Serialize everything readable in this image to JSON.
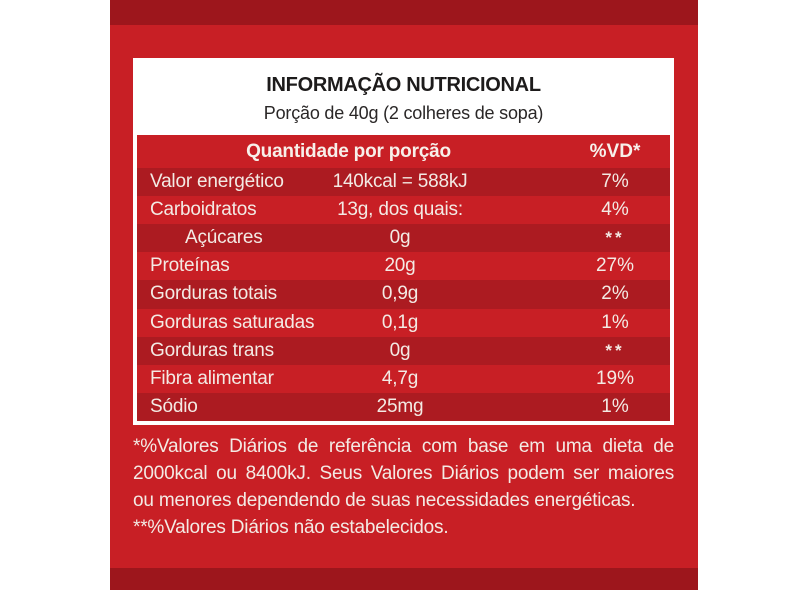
{
  "colors": {
    "page_background": "#ffffff",
    "panel_red": "#c81f25",
    "panel_edge_band": "#9d161c",
    "row_dark_red": "#ac1b21",
    "text_on_red": "#f3eae4",
    "title_text": "#1d1b1b"
  },
  "table": {
    "title": "INFORMAÇÃO NUTRICIONAL",
    "serving": "Porção de 40g (2 colheres de sopa)",
    "header": {
      "quantity": "Quantidade por porção",
      "dv": "%VD*"
    },
    "rows": [
      {
        "name": "Valor energético",
        "value": "140kcal = 588kJ",
        "dv": "7%"
      },
      {
        "name": "Carboidratos",
        "value": "13g, dos quais:",
        "dv": "4%"
      },
      {
        "name": "Açúcares",
        "value": "0g",
        "dv": "**"
      },
      {
        "name": "Proteínas",
        "value": "20g",
        "dv": "27%"
      },
      {
        "name": "Gorduras totais",
        "value": "0,9g",
        "dv": "2%"
      },
      {
        "name": "Gorduras saturadas",
        "value": "0,1g",
        "dv": "1%"
      },
      {
        "name": "Gorduras trans",
        "value": "0g",
        "dv": "**"
      },
      {
        "name": "Fibra alimentar",
        "value": "4,7g",
        "dv": "19%"
      },
      {
        "name": "Sódio",
        "value": "25mg",
        "dv": "1%"
      }
    ]
  },
  "footnote": {
    "lines": [
      "*%Valores Diários de referência com base em uma dieta de",
      "2000kcal ou 8400kJ. Seus Valores Diários podem ser maiores",
      "ou menores dependendo de suas necessidades energéticas.",
      "**%Valores Diários não estabelecidos."
    ]
  }
}
